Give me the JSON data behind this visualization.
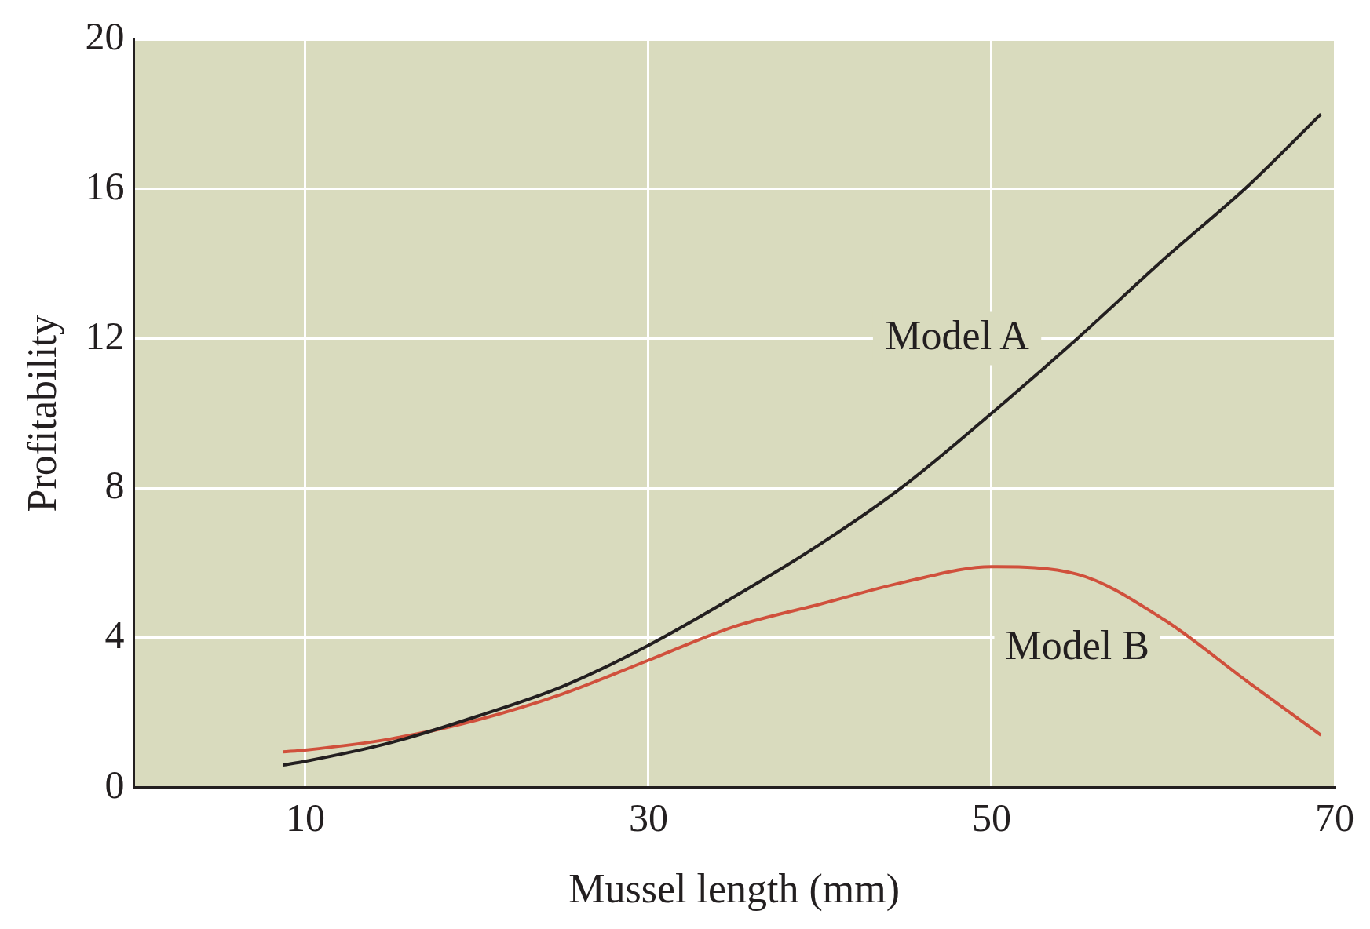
{
  "chart_data": {
    "type": "line",
    "xlabel": "Mussel length (mm)",
    "ylabel": "Profitability",
    "xlim": [
      0,
      70
    ],
    "xticks": [
      10,
      30,
      50,
      70
    ],
    "ylim": [
      0,
      20
    ],
    "yticks": [
      0,
      4,
      8,
      12,
      16,
      20
    ],
    "grid": true,
    "legend": false,
    "marker": "none",
    "line_style": "solid",
    "series": [
      {
        "name": "Model A",
        "color": "#231f20",
        "x": [
          8.7,
          10,
          15,
          20,
          25,
          30,
          35,
          40,
          45,
          50,
          55,
          60,
          65,
          69.2
        ],
        "values": [
          0.6,
          0.7,
          1.2,
          1.9,
          2.7,
          3.8,
          5.1,
          6.5,
          8.1,
          10.0,
          12.0,
          14.1,
          16.1,
          18.0
        ]
      },
      {
        "name": "Model B",
        "color": "#d0503c",
        "x": [
          8.7,
          10,
          15,
          20,
          25,
          30,
          35,
          40,
          45,
          50,
          55,
          60,
          65,
          69.2
        ],
        "values": [
          0.95,
          1.0,
          1.3,
          1.8,
          2.5,
          3.4,
          4.3,
          4.9,
          5.5,
          5.9,
          5.7,
          4.5,
          2.8,
          1.4
        ]
      }
    ]
  }
}
